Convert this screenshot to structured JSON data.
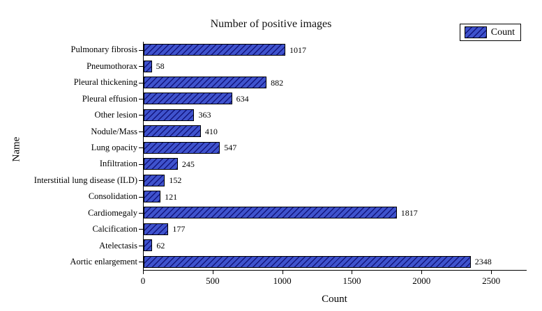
{
  "chart_data": {
    "type": "bar",
    "orientation": "horizontal",
    "title": "Number of positive images",
    "xlabel": "Count",
    "ylabel": "Name",
    "legend_label": "Count",
    "legend_position": "top-right",
    "grid": false,
    "xlim": [
      0,
      2750
    ],
    "xticks": [
      0,
      500,
      1000,
      1500,
      2000,
      2500
    ],
    "categories": [
      "Pulmonary fibrosis",
      "Pneumothorax",
      "Pleural thickening",
      "Pleural effusion",
      "Other lesion",
      "Nodule/Mass",
      "Lung opacity",
      "Infiltration",
      "Interstitial lung disease (ILD)",
      "Consolidation",
      "Cardiomegaly",
      "Calcification",
      "Atelectasis",
      "Aortic enlargement"
    ],
    "values": [
      1017,
      58,
      882,
      634,
      363,
      410,
      547,
      245,
      152,
      121,
      1817,
      177,
      62,
      2348
    ],
    "colors": {
      "bar_fill": "#3f53cd",
      "bar_hatch": "#0a0a6e",
      "bar_edge": "#000000",
      "hatch_style": "/"
    }
  }
}
